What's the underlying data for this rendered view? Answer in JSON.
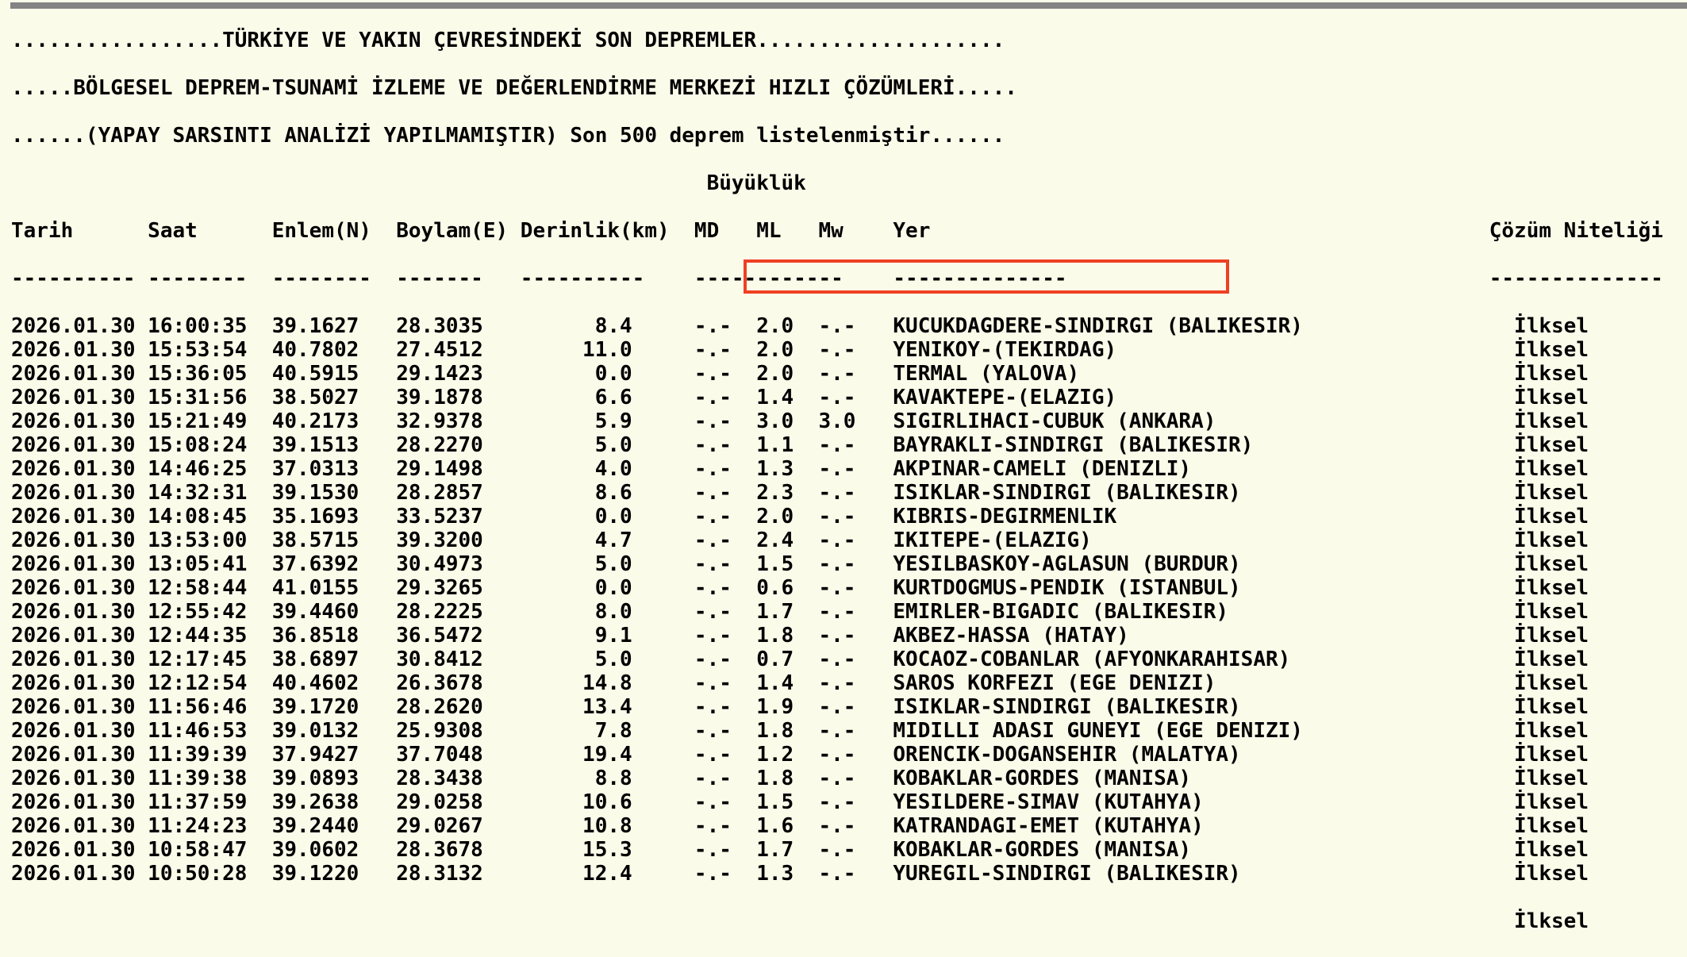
{
  "header": {
    "title_lines": [
      ".................TÜRKİYE VE YAKIN ÇEVRESİNDEKİ SON DEPREMLER....................",
      ".....BÖLGESEL DEPREM-TSUNAMİ İZLEME VE DEĞERLENDİRME MERKEZİ HIZLI ÇÖZÜMLERİ.....",
      "......(YAPAY SARSINTI ANALİZİ YAPILMAMIŞTIR) Son 500 deprem listelenmiştir......"
    ],
    "magnitude_group_label": "Büyüklük"
  },
  "table": {
    "columns": [
      "Tarih",
      "Saat",
      "Enlem(N)",
      "Boylam(E)",
      "Derinlik(km)",
      "MD",
      "ML",
      "Mw",
      "Yer",
      "Çözüm Niteliği"
    ],
    "rows": [
      {
        "date": "2026.01.30",
        "time": "16:00:35",
        "lat": "39.1627",
        "lon": "28.3035",
        "depth": "8.4",
        "md": "-.-",
        "ml": "2.0",
        "mw": "-.-",
        "place": "KUCUKDAGDERE-SINDIRGI (BALIKESIR)",
        "quality": "İlksel"
      },
      {
        "date": "2026.01.30",
        "time": "15:53:54",
        "lat": "40.7802",
        "lon": "27.4512",
        "depth": "11.0",
        "md": "-.-",
        "ml": "2.0",
        "mw": "-.-",
        "place": "YENIKOY-(TEKIRDAG)",
        "quality": "İlksel"
      },
      {
        "date": "2026.01.30",
        "time": "15:36:05",
        "lat": "40.5915",
        "lon": "29.1423",
        "depth": "0.0",
        "md": "-.-",
        "ml": "2.0",
        "mw": "-.-",
        "place": "TERMAL (YALOVA)",
        "quality": "İlksel"
      },
      {
        "date": "2026.01.30",
        "time": "15:31:56",
        "lat": "38.5027",
        "lon": "39.1878",
        "depth": "6.6",
        "md": "-.-",
        "ml": "1.4",
        "mw": "-.-",
        "place": "KAVAKTEPE-(ELAZIG)",
        "quality": "İlksel"
      },
      {
        "date": "2026.01.30",
        "time": "15:21:49",
        "lat": "40.2173",
        "lon": "32.9378",
        "depth": "5.9",
        "md": "-.-",
        "ml": "3.0",
        "mw": "3.0",
        "place": "SIGIRLIHACI-CUBUK (ANKARA)",
        "quality": "İlksel"
      },
      {
        "date": "2026.01.30",
        "time": "15:08:24",
        "lat": "39.1513",
        "lon": "28.2270",
        "depth": "5.0",
        "md": "-.-",
        "ml": "1.1",
        "mw": "-.-",
        "place": "BAYRAKLI-SINDIRGI (BALIKESIR)",
        "quality": "İlksel"
      },
      {
        "date": "2026.01.30",
        "time": "14:46:25",
        "lat": "37.0313",
        "lon": "29.1498",
        "depth": "4.0",
        "md": "-.-",
        "ml": "1.3",
        "mw": "-.-",
        "place": "AKPINAR-CAMELI (DENIZLI)",
        "quality": "İlksel"
      },
      {
        "date": "2026.01.30",
        "time": "14:32:31",
        "lat": "39.1530",
        "lon": "28.2857",
        "depth": "8.6",
        "md": "-.-",
        "ml": "2.3",
        "mw": "-.-",
        "place": "ISIKLAR-SINDIRGI (BALIKESIR)",
        "quality": "İlksel"
      },
      {
        "date": "2026.01.30",
        "time": "14:08:45",
        "lat": "35.1693",
        "lon": "33.5237",
        "depth": "0.0",
        "md": "-.-",
        "ml": "2.0",
        "mw": "-.-",
        "place": "KIBRIS-DEGIRMENLIK",
        "quality": "İlksel"
      },
      {
        "date": "2026.01.30",
        "time": "13:53:00",
        "lat": "38.5715",
        "lon": "39.3200",
        "depth": "4.7",
        "md": "-.-",
        "ml": "2.4",
        "mw": "-.-",
        "place": "IKITEPE-(ELAZIG)",
        "quality": "İlksel"
      },
      {
        "date": "2026.01.30",
        "time": "13:05:41",
        "lat": "37.6392",
        "lon": "30.4973",
        "depth": "5.0",
        "md": "-.-",
        "ml": "1.5",
        "mw": "-.-",
        "place": "YESILBASKOY-AGLASUN (BURDUR)",
        "quality": "İlksel"
      },
      {
        "date": "2026.01.30",
        "time": "12:58:44",
        "lat": "41.0155",
        "lon": "29.3265",
        "depth": "0.0",
        "md": "-.-",
        "ml": "0.6",
        "mw": "-.-",
        "place": "KURTDOGMUS-PENDIK (ISTANBUL)",
        "quality": "İlksel"
      },
      {
        "date": "2026.01.30",
        "time": "12:55:42",
        "lat": "39.4460",
        "lon": "28.2225",
        "depth": "8.0",
        "md": "-.-",
        "ml": "1.7",
        "mw": "-.-",
        "place": "EMIRLER-BIGADIC (BALIKESIR)",
        "quality": "İlksel"
      },
      {
        "date": "2026.01.30",
        "time": "12:44:35",
        "lat": "36.8518",
        "lon": "36.5472",
        "depth": "9.1",
        "md": "-.-",
        "ml": "1.8",
        "mw": "-.-",
        "place": "AKBEZ-HASSA (HATAY)",
        "quality": "İlksel"
      },
      {
        "date": "2026.01.30",
        "time": "12:17:45",
        "lat": "38.6897",
        "lon": "30.8412",
        "depth": "5.0",
        "md": "-.-",
        "ml": "0.7",
        "mw": "-.-",
        "place": "KOCAOZ-COBANLAR (AFYONKARAHISAR)",
        "quality": "İlksel"
      },
      {
        "date": "2026.01.30",
        "time": "12:12:54",
        "lat": "40.4602",
        "lon": "26.3678",
        "depth": "14.8",
        "md": "-.-",
        "ml": "1.4",
        "mw": "-.-",
        "place": "SAROS KORFEZI (EGE DENIZI)",
        "quality": "İlksel"
      },
      {
        "date": "2026.01.30",
        "time": "11:56:46",
        "lat": "39.1720",
        "lon": "28.2620",
        "depth": "13.4",
        "md": "-.-",
        "ml": "1.9",
        "mw": "-.-",
        "place": "ISIKLAR-SINDIRGI (BALIKESIR)",
        "quality": "İlksel"
      },
      {
        "date": "2026.01.30",
        "time": "11:46:53",
        "lat": "39.0132",
        "lon": "25.9308",
        "depth": "7.8",
        "md": "-.-",
        "ml": "1.8",
        "mw": "-.-",
        "place": "MIDILLI ADASI GUNEYI (EGE DENIZI)",
        "quality": "İlksel"
      },
      {
        "date": "2026.01.30",
        "time": "11:39:39",
        "lat": "37.9427",
        "lon": "37.7048",
        "depth": "19.4",
        "md": "-.-",
        "ml": "1.2",
        "mw": "-.-",
        "place": "ORENCIK-DOGANSEHIR (MALATYA)",
        "quality": "İlksel"
      },
      {
        "date": "2026.01.30",
        "time": "11:39:38",
        "lat": "39.0893",
        "lon": "28.3438",
        "depth": "8.8",
        "md": "-.-",
        "ml": "1.8",
        "mw": "-.-",
        "place": "KOBAKLAR-GORDES (MANISA)",
        "quality": "İlksel"
      },
      {
        "date": "2026.01.30",
        "time": "11:37:59",
        "lat": "39.2638",
        "lon": "29.0258",
        "depth": "10.6",
        "md": "-.-",
        "ml": "1.5",
        "mw": "-.-",
        "place": "YESILDERE-SIMAV (KUTAHYA)",
        "quality": "İlksel"
      },
      {
        "date": "2026.01.30",
        "time": "11:24:23",
        "lat": "39.2440",
        "lon": "29.0267",
        "depth": "10.8",
        "md": "-.-",
        "ml": "1.6",
        "mw": "-.-",
        "place": "KATRANDAGI-EMET (KUTAHYA)",
        "quality": "İlksel"
      },
      {
        "date": "2026.01.30",
        "time": "10:58:47",
        "lat": "39.0602",
        "lon": "28.3678",
        "depth": "15.3",
        "md": "-.-",
        "ml": "1.7",
        "mw": "-.-",
        "place": "KOBAKLAR-GORDES (MANISA)",
        "quality": "İlksel"
      },
      {
        "date": "2026.01.30",
        "time": "10:50:28",
        "lat": "39.1220",
        "lon": "28.3132",
        "depth": "12.4",
        "md": "-.-",
        "ml": "1.3",
        "mw": "-.-",
        "place": "YUREGIL-SINDIRGI (BALIKESIR)",
        "quality": "İlksel"
      }
    ],
    "partial_next_row_quality": "İlksel"
  },
  "highlight": {
    "row_index": 4,
    "covers": "ML, Mw and Yer of highlighted row",
    "border_color": "#EE4123"
  },
  "colors": {
    "background": "#FBFBEA",
    "text": "#000000",
    "top_bar": "#848484"
  }
}
